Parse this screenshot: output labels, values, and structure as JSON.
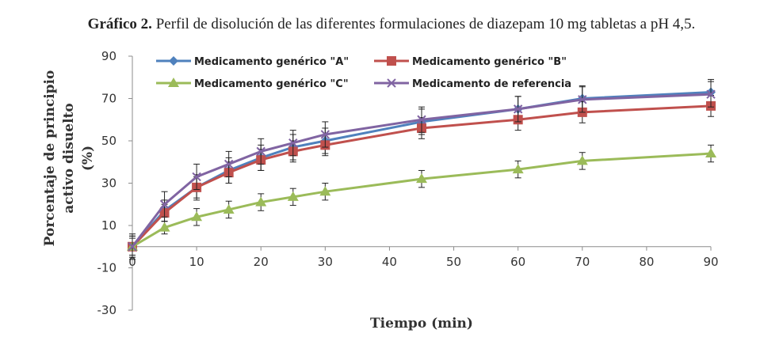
{
  "caption": {
    "prefix": "Gráfico 2.",
    "text": "Perfil de disolución de las diferentes formulaciones de diazepam 10 mg tabletas a pH 4,5."
  },
  "chart_data": {
    "type": "line",
    "title": "",
    "xlabel": "Tiempo (min)",
    "ylabel_lines": [
      "Porcentaje de principio",
      "activo disuelto",
      "(%)"
    ],
    "xlim": [
      0,
      90
    ],
    "ylim": [
      -30,
      90
    ],
    "x_ticks": [
      0,
      10,
      20,
      30,
      40,
      50,
      60,
      70,
      80,
      90
    ],
    "y_ticks": [
      -30,
      -10,
      10,
      30,
      50,
      70,
      90
    ],
    "grid": false,
    "legend_position": "top",
    "x": [
      0,
      5,
      10,
      15,
      20,
      25,
      30,
      45,
      60,
      70,
      90
    ],
    "series": [
      {
        "name": "Medicamento genérico \"A\"",
        "color": "#4f81bd",
        "marker": "diamond",
        "values": [
          0,
          17,
          28,
          36,
          42,
          47,
          50,
          59,
          65,
          70,
          73
        ],
        "errors": [
          5,
          5,
          6,
          6,
          6,
          6,
          6,
          6,
          6,
          6,
          6
        ]
      },
      {
        "name": "Medicamento genérico \"B\"",
        "color": "#c0504d",
        "marker": "square",
        "values": [
          0,
          16,
          28,
          35,
          41,
          45,
          48,
          56,
          60,
          63.5,
          66.5
        ],
        "errors": [
          5,
          4,
          5,
          5,
          5,
          5,
          5,
          5,
          5,
          5,
          5
        ]
      },
      {
        "name": "Medicamento genérico \"C\"",
        "color": "#9bbb59",
        "marker": "triangle",
        "values": [
          0,
          9,
          14,
          17.5,
          21,
          23.5,
          26,
          32,
          36.5,
          40.5,
          44
        ],
        "errors": [
          4,
          3,
          4,
          4,
          4,
          4,
          4,
          4,
          4,
          4,
          4
        ]
      },
      {
        "name": "Medicamento de referencia",
        "color": "#8064a2",
        "marker": "x",
        "values": [
          0,
          20,
          33,
          39,
          45,
          49,
          53,
          60,
          65,
          69.5,
          72
        ],
        "errors": [
          6,
          6,
          6,
          6,
          6,
          6,
          6,
          6,
          6,
          6,
          6
        ]
      }
    ]
  }
}
